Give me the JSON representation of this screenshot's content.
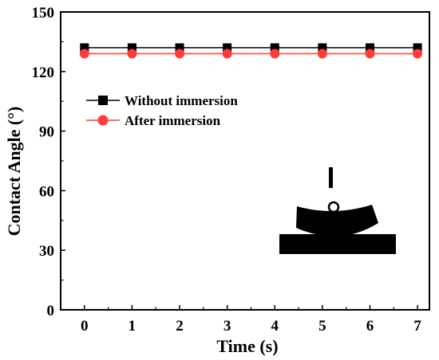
{
  "chart_data": {
    "type": "line",
    "xlabel": "Time (s)",
    "ylabel": "Contact Angle (°)",
    "xlim": [
      -0.5,
      7.25
    ],
    "ylim": [
      0,
      150
    ],
    "x_ticks": [
      "0",
      "1",
      "2",
      "3",
      "4",
      "5",
      "6",
      "7"
    ],
    "y_ticks": [
      "0",
      "30",
      "60",
      "90",
      "120",
      "150"
    ],
    "x": [
      0,
      1,
      2,
      3,
      4,
      5,
      6,
      7
    ],
    "series": [
      {
        "name": "Without immersion",
        "values": [
          132,
          132,
          132,
          132,
          132,
          132,
          132,
          132
        ],
        "color": "#000000",
        "marker": "square"
      },
      {
        "name": "After immersion",
        "values": [
          129,
          129,
          129,
          129,
          129,
          129,
          129,
          129
        ],
        "color": "#ff3b3b",
        "marker": "circle"
      }
    ],
    "legend_position": "upper-left",
    "inset": "water droplet on a black substrate (side view)"
  }
}
